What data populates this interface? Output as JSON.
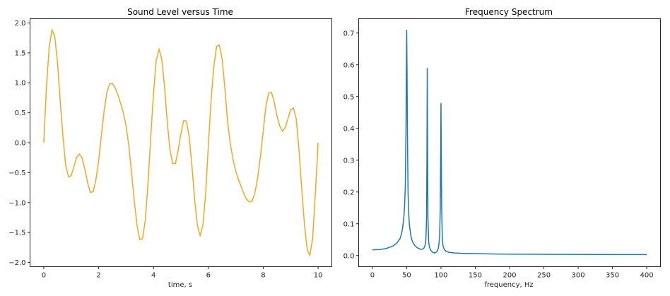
{
  "chart_data": [
    {
      "type": "line",
      "title": "Sound Level versus Time",
      "xlabel": "time, s",
      "ylabel": "",
      "xlim": [
        -0.5,
        10.5
      ],
      "ylim": [
        -2.07,
        2.07
      ],
      "xticks": [
        0,
        2,
        4,
        6,
        8,
        10
      ],
      "xtick_labels": [
        "0",
        "2",
        "4",
        "6",
        "8",
        "10"
      ],
      "yticks": [
        -2.0,
        -1.5,
        -1.0,
        -0.5,
        0.0,
        0.5,
        1.0,
        1.5,
        2.0
      ],
      "ytick_labels": [
        "−2.0",
        "−1.5",
        "−1.0",
        "−0.5",
        "0.0",
        "0.5",
        "1.0",
        "1.5",
        "2.0"
      ],
      "grid": false,
      "legend": null,
      "color": "#f5a623",
      "series": [
        {
          "name": "sound level",
          "x": [
            0.0,
            0.1,
            0.2,
            0.3,
            0.4,
            0.5,
            0.6,
            0.7,
            0.8,
            0.9,
            1.0,
            1.1,
            1.2,
            1.3,
            1.4,
            1.5,
            1.6,
            1.7,
            1.8,
            1.9,
            2.0,
            2.1,
            2.2,
            2.3,
            2.4,
            2.5,
            2.6,
            2.7,
            2.8,
            2.9,
            3.0,
            3.1,
            3.2,
            3.3,
            3.4,
            3.5,
            3.6,
            3.7,
            3.8,
            3.9,
            4.0,
            4.1,
            4.2,
            4.3,
            4.4,
            4.5,
            4.6,
            4.7,
            4.8,
            4.9,
            5.0,
            5.1,
            5.2,
            5.3,
            5.4,
            5.5,
            5.6,
            5.7,
            5.8,
            5.9,
            6.0,
            6.1,
            6.2,
            6.3,
            6.4,
            6.5,
            6.6,
            6.7,
            6.8,
            6.9,
            7.0,
            7.1,
            7.2,
            7.3,
            7.4,
            7.5,
            7.6,
            7.7,
            7.8,
            7.9,
            8.0,
            8.1,
            8.2,
            8.3,
            8.4,
            8.5,
            8.6,
            8.7,
            8.8,
            8.9,
            9.0,
            9.1,
            9.2,
            9.3,
            9.4,
            9.5,
            9.6,
            9.7,
            9.8,
            9.9,
            10.0
          ],
          "y": [
            0.0,
            0.95,
            1.6,
            1.88,
            1.78,
            1.35,
            0.7,
            0.1,
            -0.38,
            -0.57,
            -0.55,
            -0.4,
            -0.24,
            -0.19,
            -0.26,
            -0.45,
            -0.67,
            -0.83,
            -0.82,
            -0.62,
            -0.3,
            0.12,
            0.53,
            0.84,
            0.98,
            0.99,
            0.92,
            0.8,
            0.66,
            0.5,
            0.28,
            -0.05,
            -0.5,
            -0.98,
            -1.38,
            -1.62,
            -1.6,
            -1.3,
            -0.68,
            0.1,
            0.82,
            1.38,
            1.56,
            1.4,
            0.95,
            0.35,
            -0.12,
            -0.35,
            -0.35,
            -0.12,
            0.15,
            0.37,
            0.36,
            0.1,
            -0.38,
            -0.95,
            -1.38,
            -1.55,
            -1.38,
            -0.85,
            -0.05,
            0.72,
            1.27,
            1.61,
            1.63,
            1.4,
            0.92,
            0.35,
            -0.02,
            -0.28,
            -0.48,
            -0.62,
            -0.74,
            -0.86,
            -0.95,
            -0.99,
            -0.97,
            -0.83,
            -0.58,
            -0.22,
            0.2,
            0.62,
            0.83,
            0.84,
            0.68,
            0.45,
            0.28,
            0.19,
            0.25,
            0.4,
            0.55,
            0.58,
            0.4,
            -0.1,
            -0.75,
            -1.35,
            -1.78,
            -1.88,
            -1.6,
            -0.85,
            0.0
          ]
        }
      ]
    },
    {
      "type": "line",
      "title": "Frequency Spectrum",
      "xlabel": "frequency, Hz",
      "ylabel": "",
      "xlim": [
        -20,
        420
      ],
      "ylim": [
        -0.035,
        0.745
      ],
      "xticks": [
        0,
        50,
        100,
        150,
        200,
        250,
        300,
        350,
        400
      ],
      "xtick_labels": [
        "0",
        "50",
        "100",
        "150",
        "200",
        "250",
        "300",
        "350",
        "400"
      ],
      "yticks": [
        0.0,
        0.1,
        0.2,
        0.3,
        0.4,
        0.5,
        0.6,
        0.7
      ],
      "ytick_labels": [
        "0.0",
        "0.1",
        "0.2",
        "0.3",
        "0.4",
        "0.5",
        "0.6",
        "0.7"
      ],
      "grid": false,
      "legend": null,
      "color": "#1f77b4",
      "peaks": [
        {
          "frequency": 50,
          "amplitude": 0.71
        },
        {
          "frequency": 80,
          "amplitude": 0.59
        },
        {
          "frequency": 100,
          "amplitude": 0.48
        }
      ],
      "series": [
        {
          "name": "spectrum",
          "x": [
            0,
            10,
            20,
            30,
            35,
            40,
            42,
            44,
            46,
            47,
            48,
            49,
            49.5,
            50,
            50.5,
            51,
            52,
            53,
            54,
            56,
            58,
            60,
            63,
            66,
            70,
            73,
            75,
            77,
            78,
            79,
            79.5,
            80,
            80.5,
            81,
            82,
            83,
            85,
            88,
            91,
            94,
            96,
            97,
            98,
            99,
            99.5,
            100,
            100.5,
            101,
            102,
            103,
            105,
            108,
            112,
            120,
            130,
            150,
            175,
            200,
            250,
            300,
            350,
            400
          ],
          "y": [
            0.018,
            0.019,
            0.022,
            0.03,
            0.038,
            0.052,
            0.065,
            0.085,
            0.125,
            0.16,
            0.22,
            0.4,
            0.58,
            0.71,
            0.58,
            0.4,
            0.2,
            0.13,
            0.095,
            0.063,
            0.046,
            0.037,
            0.029,
            0.024,
            0.02,
            0.02,
            0.023,
            0.033,
            0.05,
            0.12,
            0.3,
            0.59,
            0.3,
            0.12,
            0.045,
            0.028,
            0.017,
            0.01,
            0.008,
            0.012,
            0.022,
            0.035,
            0.06,
            0.15,
            0.3,
            0.48,
            0.3,
            0.15,
            0.05,
            0.03,
            0.018,
            0.013,
            0.01,
            0.008,
            0.007,
            0.006,
            0.005,
            0.0045,
            0.004,
            0.0035,
            0.003,
            0.003
          ]
        }
      ]
    }
  ]
}
